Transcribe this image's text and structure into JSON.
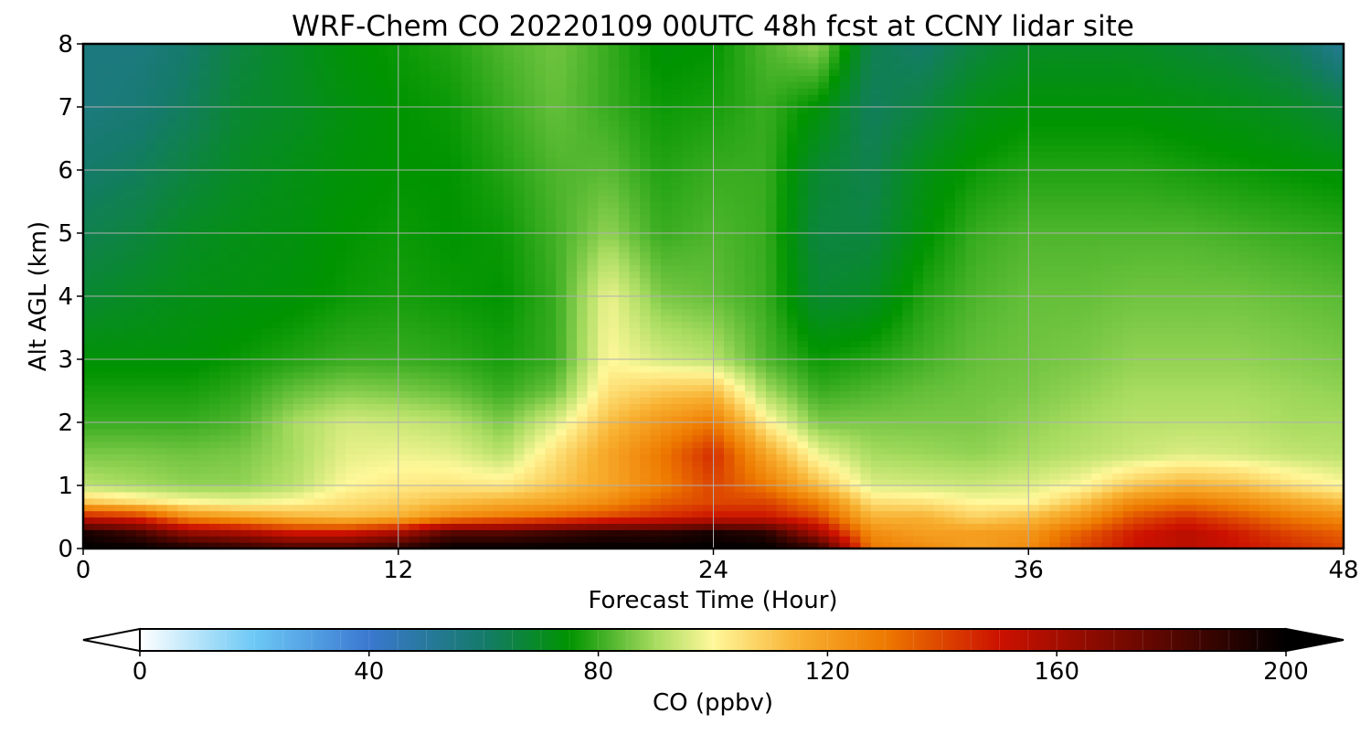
{
  "chart_data": {
    "type": "heatmap",
    "title": "WRF-Chem CO  20220109 00UTC 48h fcst at CCNY lidar site",
    "xlabel": "Forecast Time (Hour)",
    "ylabel": "Alt AGL (km)",
    "xlim": [
      0,
      48
    ],
    "ylim": [
      0,
      8
    ],
    "xticks": [
      0,
      12,
      24,
      36,
      48
    ],
    "yticks": [
      0,
      1,
      2,
      3,
      4,
      5,
      6,
      7,
      8
    ],
    "grid": true,
    "colorbar": {
      "label": "CO  (ppbv)",
      "min": 0,
      "max": 200,
      "ticks": [
        0,
        40,
        80,
        120,
        160,
        200
      ],
      "extend": "both",
      "stops": [
        {
          "v": 0,
          "c": "#ffffff"
        },
        {
          "v": 20,
          "c": "#6cc8f5"
        },
        {
          "v": 40,
          "c": "#3a78d0"
        },
        {
          "v": 60,
          "c": "#157a6a"
        },
        {
          "v": 75,
          "c": "#009400"
        },
        {
          "v": 90,
          "c": "#a8dc60"
        },
        {
          "v": 100,
          "c": "#fff89a"
        },
        {
          "v": 115,
          "c": "#f8b030"
        },
        {
          "v": 130,
          "c": "#ee7a00"
        },
        {
          "v": 150,
          "c": "#cc1100"
        },
        {
          "v": 175,
          "c": "#6a0800"
        },
        {
          "v": 200,
          "c": "#000000"
        }
      ]
    },
    "x_hours": [
      0,
      2,
      4,
      6,
      8,
      10,
      12,
      14,
      16,
      18,
      20,
      22,
      24,
      26,
      28,
      30,
      32,
      34,
      36,
      38,
      40,
      42,
      44,
      46,
      48
    ],
    "altitudes_km": [
      0,
      0.25,
      0.5,
      0.75,
      1,
      1.5,
      2,
      2.5,
      3,
      4,
      5,
      6,
      7,
      8
    ],
    "values_ppbv": [
      [
        200,
        200,
        195,
        190,
        185,
        185,
        190,
        200,
        200,
        200,
        200,
        200,
        200,
        200,
        190,
        130,
        125,
        120,
        125,
        140,
        150,
        155,
        150,
        145,
        140
      ],
      [
        195,
        185,
        165,
        160,
        150,
        150,
        160,
        180,
        180,
        185,
        190,
        190,
        195,
        190,
        160,
        125,
        120,
        120,
        122,
        135,
        148,
        155,
        148,
        140,
        135
      ],
      [
        150,
        145,
        125,
        120,
        115,
        112,
        115,
        125,
        130,
        135,
        140,
        145,
        150,
        150,
        140,
        115,
        115,
        108,
        112,
        122,
        138,
        145,
        138,
        130,
        125
      ],
      [
        110,
        105,
        100,
        98,
        100,
        105,
        108,
        112,
        115,
        118,
        125,
        135,
        140,
        140,
        128,
        105,
        104,
        100,
        100,
        110,
        125,
        130,
        125,
        118,
        112
      ],
      [
        92,
        90,
        88,
        88,
        92,
        100,
        103,
        104,
        103,
        110,
        118,
        128,
        140,
        130,
        112,
        96,
        95,
        94,
        96,
        100,
        110,
        115,
        112,
        105,
        100
      ],
      [
        86,
        86,
        85,
        86,
        90,
        97,
        98,
        97,
        92,
        105,
        118,
        130,
        145,
        118,
        98,
        90,
        89,
        88,
        90,
        92,
        94,
        96,
        95,
        93,
        92
      ],
      [
        80,
        80,
        80,
        82,
        90,
        95,
        94,
        92,
        86,
        96,
        112,
        122,
        130,
        102,
        86,
        86,
        86,
        86,
        88,
        90,
        92,
        92,
        92,
        90,
        90
      ],
      [
        77,
        77,
        77,
        79,
        84,
        87,
        86,
        84,
        80,
        85,
        105,
        110,
        112,
        90,
        80,
        82,
        84,
        85,
        86,
        88,
        90,
        90,
        90,
        89,
        88
      ],
      [
        74,
        74,
        74,
        76,
        78,
        80,
        80,
        79,
        77,
        80,
        100,
        95,
        92,
        82,
        76,
        78,
        81,
        84,
        85,
        86,
        88,
        88,
        88,
        87,
        86
      ],
      [
        68,
        70,
        72,
        73,
        74,
        76,
        77,
        76,
        75,
        80,
        98,
        86,
        84,
        80,
        68,
        70,
        78,
        82,
        84,
        84,
        85,
        85,
        85,
        84,
        83
      ],
      [
        64,
        66,
        70,
        72,
        73,
        75,
        76,
        75,
        76,
        81,
        88,
        80,
        82,
        80,
        66,
        66,
        74,
        80,
        82,
        82,
        82,
        82,
        81,
        80,
        79
      ],
      [
        60,
        62,
        66,
        70,
        72,
        74,
        75,
        75,
        78,
        82,
        83,
        78,
        80,
        80,
        68,
        64,
        72,
        76,
        78,
        78,
        78,
        77,
        76,
        75,
        74
      ],
      [
        56,
        58,
        62,
        68,
        70,
        73,
        75,
        76,
        80,
        84,
        80,
        76,
        77,
        80,
        74,
        62,
        66,
        72,
        74,
        74,
        74,
        73,
        72,
        70,
        66
      ],
      [
        56,
        56,
        60,
        66,
        70,
        74,
        76,
        78,
        82,
        85,
        80,
        74,
        75,
        82,
        88,
        64,
        60,
        66,
        70,
        70,
        70,
        68,
        66,
        62,
        52
      ]
    ]
  }
}
